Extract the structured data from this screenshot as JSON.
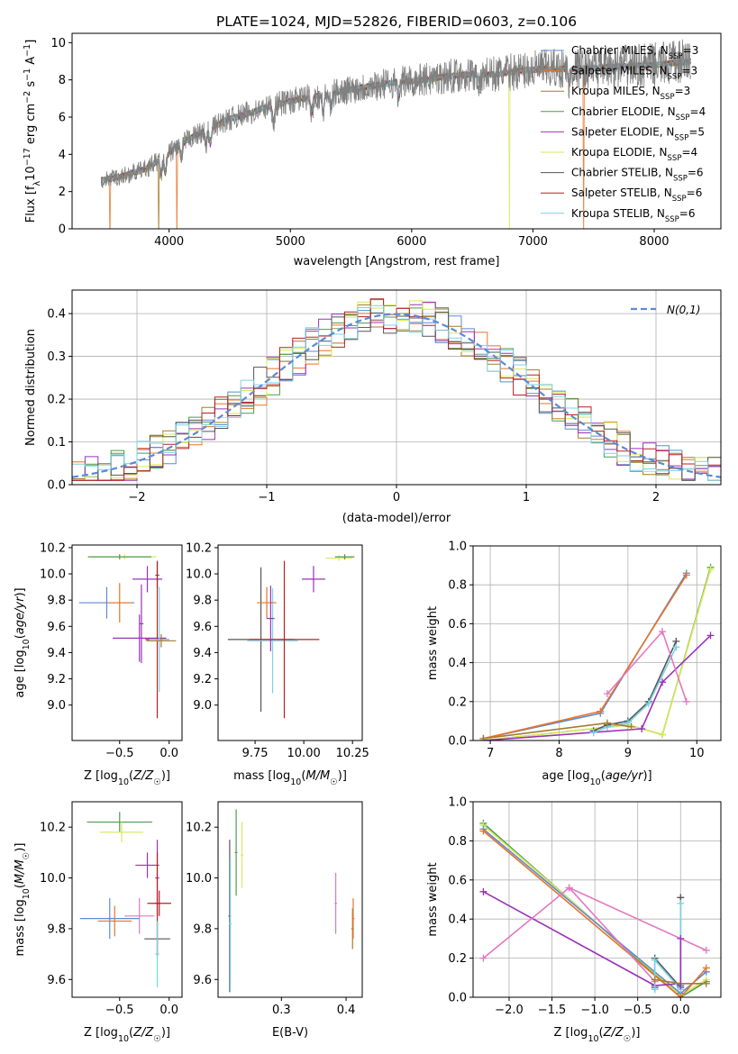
{
  "figure": {
    "title": "PLATE=1024, MJD=52826, FIBERID=0603, z=0.106"
  },
  "series_names": [
    "Chabrier MILES, N_SSP=3",
    "Salpeter MILES, N_SSP=3",
    "Kroupa MILES, N_SSP=3",
    "Chabrier ELODIE, N_SSP=4",
    "Salpeter ELODIE, N_SSP=5",
    "Kroupa ELODIE, N_SSP=4",
    "Chabrier STELIB, N_SSP=6",
    "Salpeter STELIB, N_SSP=6",
    "Kroupa STELIB, N_SSP=6"
  ],
  "series_colors": [
    "#5b8ad6",
    "#e8742a",
    "#a67c2a",
    "#4f9a4f",
    "#9a32b8",
    "#d9e85a",
    "#555555",
    "#b82020",
    "#79d2e6"
  ],
  "chart_data": [
    {
      "id": "spectrum",
      "type": "line",
      "title": "PLATE=1024, MJD=52826, FIBERID=0603, z=0.106",
      "xlabel": "wavelength [Angstrom, rest frame]",
      "ylabel": "Flux [f_λ 10^-17 erg cm^-2 s^-1 A^-1]",
      "xlim": [
        3200,
        8550
      ],
      "ylim": [
        0,
        10.5
      ],
      "xticks": [
        4000,
        5000,
        6000,
        7000,
        8000
      ],
      "yticks": [
        0,
        2,
        4,
        6,
        8,
        10
      ],
      "grid": false,
      "legend": "upper right",
      "legend_entries": [
        {
          "prefix": "Chabrier MILES, N",
          "sub": "SSP",
          "suffix": "=3"
        },
        {
          "prefix": "Salpeter MILES, N",
          "sub": "SSP",
          "suffix": "=3"
        },
        {
          "prefix": "Kroupa MILES, N",
          "sub": "SSP",
          "suffix": "=3"
        },
        {
          "prefix": "Chabrier ELODIE, N",
          "sub": "SSP",
          "suffix": "=4"
        },
        {
          "prefix": "Salpeter ELODIE, N",
          "sub": "SSP",
          "suffix": "=5"
        },
        {
          "prefix": "Kroupa ELODIE, N",
          "sub": "SSP",
          "suffix": "=4"
        },
        {
          "prefix": "Chabrier STELIB, N",
          "sub": "SSP",
          "suffix": "=6"
        },
        {
          "prefix": "Salpeter STELIB, N",
          "sub": "SSP",
          "suffix": "=6"
        },
        {
          "prefix": "Kroupa STELIB, N",
          "sub": "SSP",
          "suffix": "=6"
        }
      ],
      "data_color": "#808080",
      "data_range": [
        3440,
        8300
      ],
      "continuum_x": [
        3440,
        3600,
        3800,
        3950,
        4100,
        4300,
        4500,
        4700,
        4900,
        5100,
        5300,
        5500,
        5700,
        5900,
        6100,
        6300,
        6500,
        6700,
        6900,
        7100,
        7400,
        7700,
        8000,
        8300
      ],
      "continuum_y": [
        2.6,
        2.8,
        3.2,
        3.8,
        4.6,
        5.3,
        5.9,
        6.3,
        6.7,
        7.0,
        7.2,
        7.5,
        7.7,
        7.9,
        8.0,
        8.2,
        8.3,
        8.3,
        8.5,
        8.6,
        8.6,
        8.7,
        8.8,
        9.0
      ],
      "absorption_lines": [
        3934,
        3969,
        4102,
        4304,
        4341,
        4861,
        5175,
        5270,
        5335,
        5894,
        6563,
        7300
      ],
      "model_dips": [
        {
          "x": 3510,
          "series": 1
        },
        {
          "x": 3915,
          "series": 2
        },
        {
          "x": 4065,
          "series": 1
        },
        {
          "x": 6805,
          "series": 5
        },
        {
          "x": 7420,
          "series": 1
        }
      ]
    },
    {
      "id": "residual-histogram",
      "type": "line",
      "xlabel": "(data-model)/error",
      "ylabel": "Normed distribution",
      "xlim": [
        -2.5,
        2.5
      ],
      "ylim": [
        0,
        0.455
      ],
      "xticks": [
        -2,
        -1,
        0,
        1,
        2
      ],
      "yticks": [
        0.0,
        0.1,
        0.2,
        0.3,
        0.4
      ],
      "grid": true,
      "legend": "upper right",
      "reference_label": "N(0,1)",
      "reference_color": "#5b8ad6",
      "bin_width": 0.1,
      "bins_start": -2.5
    },
    {
      "id": "age-vs-metallicity",
      "type": "scatter",
      "xlabel": "Z [log10(Z/Z☉)]",
      "ylabel": "age [log10(age/yr)]",
      "xlim": [
        -0.98,
        0.13
      ],
      "ylim": [
        8.73,
        10.22
      ],
      "xticks": [
        -0.5,
        0.0
      ],
      "xticklabels": [
        "−0.5",
        "0.0"
      ],
      "yticks": [
        9.0,
        9.2,
        9.4,
        9.6,
        9.8,
        10.0,
        10.2
      ],
      "grid": false,
      "errorbars": [
        {
          "x": -0.45,
          "y": 10.13,
          "xerr": 0.32,
          "yerr": 0.02,
          "series": 5
        },
        {
          "x": -0.5,
          "y": 10.13,
          "xerr": 0.32,
          "yerr": 0.02,
          "series": 3
        },
        {
          "x": -0.22,
          "y": 9.96,
          "xerr": 0.15,
          "yerr": 0.1,
          "series": 4
        },
        {
          "x": -0.12,
          "y": 9.99,
          "xerr": 0.02,
          "yerr": 0.1,
          "series": 6
        },
        {
          "x": -0.63,
          "y": 9.78,
          "xerr": 0.28,
          "yerr": 0.12,
          "series": 0
        },
        {
          "x": -0.5,
          "y": 9.78,
          "xerr": 0.12,
          "yerr": 0.15,
          "series": 1
        },
        {
          "x": -0.3,
          "y": 9.51,
          "xerr": 0.27,
          "yerr": 0.18,
          "series": 4
        },
        {
          "x": -0.12,
          "y": 9.5,
          "xerr": 0.12,
          "yerr": 0.6,
          "series": 7
        },
        {
          "x": -0.1,
          "y": 9.5,
          "xerr": 0.1,
          "yerr": 0.4,
          "series": 8
        },
        {
          "x": -0.08,
          "y": 9.49,
          "xerr": 0.15,
          "yerr": 0.05,
          "series": 2
        },
        {
          "x": -0.28,
          "y": 9.62,
          "xerr": 0.02,
          "yerr": 0.3,
          "series": 4
        }
      ]
    },
    {
      "id": "age-vs-mass",
      "type": "scatter",
      "xlabel": "mass [log10(M/M☉)]",
      "ylabel": "",
      "xlim": [
        9.56,
        10.3
      ],
      "ylim": [
        8.73,
        10.22
      ],
      "xticks": [
        9.75,
        10.0,
        10.25
      ],
      "xticklabels": [
        "9.75",
        "10.00",
        "10.25"
      ],
      "yticks": [
        9.0,
        9.2,
        9.4,
        9.6,
        9.8,
        10.0,
        10.2
      ],
      "grid": false,
      "errorbars": [
        {
          "x": 10.18,
          "y": 10.12,
          "xerr": 0.07,
          "yerr": 0.02,
          "series": 5
        },
        {
          "x": 10.21,
          "y": 10.13,
          "xerr": 0.05,
          "yerr": 0.02,
          "series": 3
        },
        {
          "x": 10.05,
          "y": 9.96,
          "xerr": 0.06,
          "yerr": 0.1,
          "series": 4
        },
        {
          "x": 9.78,
          "y": 9.5,
          "xerr": 0.17,
          "yerr": 0.55,
          "series": 6
        },
        {
          "x": 9.84,
          "y": 9.49,
          "xerr": 0.13,
          "yerr": 0.4,
          "series": 8
        },
        {
          "x": 9.9,
          "y": 9.5,
          "xerr": 0.18,
          "yerr": 0.6,
          "series": 7
        },
        {
          "x": 9.81,
          "y": 9.78,
          "xerr": 0.05,
          "yerr": 0.12,
          "series": 1
        },
        {
          "x": 9.83,
          "y": 9.66,
          "xerr": 0.02,
          "yerr": 0.25,
          "series": 4
        }
      ]
    },
    {
      "id": "weight-vs-age",
      "type": "line",
      "xlabel": "age [log10(age/yr)]",
      "ylabel": "mass weight",
      "xlim": [
        6.75,
        10.35
      ],
      "ylim": [
        0,
        1
      ],
      "xticks": [
        7,
        8,
        9,
        10
      ],
      "yticks": [
        0.0,
        0.2,
        0.4,
        0.6,
        0.8,
        1.0
      ],
      "grid": true,
      "series": [
        {
          "color_index": 0,
          "x": [
            6.9,
            8.6,
            9.85
          ],
          "y": [
            0.01,
            0.14,
            0.86
          ]
        },
        {
          "color_index": 1,
          "x": [
            6.9,
            8.6,
            9.85
          ],
          "y": [
            0.01,
            0.15,
            0.85
          ]
        },
        {
          "color_index": 3,
          "x": [
            6.9,
            9.0,
            9.5,
            10.2
          ],
          "y": [
            0.0,
            0.08,
            0.03,
            0.89
          ]
        },
        {
          "color_index": 5,
          "x": [
            6.9,
            9.0,
            9.5,
            10.2
          ],
          "y": [
            0.0,
            0.08,
            0.03,
            0.88
          ]
        },
        {
          "color_index": 4,
          "x": [
            6.9,
            9.2,
            9.5,
            10.2
          ],
          "y": [
            0.0,
            0.06,
            0.3,
            0.54
          ]
        },
        {
          "color_index": 6,
          "x": [
            8.5,
            8.7,
            9.0,
            9.3,
            9.7
          ],
          "y": [
            0.05,
            0.08,
            0.1,
            0.2,
            0.51
          ]
        },
        {
          "color_index": 8,
          "x": [
            8.5,
            8.7,
            9.0,
            9.3,
            9.7
          ],
          "y": [
            0.04,
            0.07,
            0.09,
            0.19,
            0.48
          ]
        },
        {
          "color_index": 2,
          "x": [
            6.9,
            8.7,
            9.05
          ],
          "y": [
            0.01,
            0.09,
            0.07
          ]
        },
        {
          "color_index": 9,
          "x": [
            8.7,
            9.5,
            9.85
          ],
          "y": [
            0.24,
            0.56,
            0.2
          ]
        }
      ]
    },
    {
      "id": "mass-vs-metallicity",
      "type": "scatter",
      "xlabel": "Z [log10(Z/Z☉)]",
      "ylabel": "mass [log10(M/M☉)]",
      "xlim": [
        -0.98,
        0.13
      ],
      "ylim": [
        9.53,
        10.3
      ],
      "xticks": [
        -0.5,
        0.0
      ],
      "xticklabels": [
        "−0.5",
        "0.0"
      ],
      "yticks": [
        9.6,
        9.8,
        10.0,
        10.2
      ],
      "grid": false,
      "errorbars": [
        {
          "x": -0.5,
          "y": 10.22,
          "xerr": 0.33,
          "yerr": 0.04,
          "series": 3
        },
        {
          "x": -0.48,
          "y": 10.18,
          "xerr": 0.22,
          "yerr": 0.04,
          "series": 5
        },
        {
          "x": -0.22,
          "y": 10.05,
          "xerr": 0.12,
          "yerr": 0.05,
          "series": 4
        },
        {
          "x": -0.12,
          "y": 10.0,
          "xerr": 0.02,
          "yerr": 0.15,
          "series": 4
        },
        {
          "x": -0.12,
          "y": 9.9,
          "xerr": 0.02,
          "yerr": 0.2,
          "series": 7
        },
        {
          "x": -0.1,
          "y": 9.9,
          "xerr": 0.12,
          "yerr": 0.05,
          "series": 7
        },
        {
          "x": -0.6,
          "y": 9.84,
          "xerr": 0.3,
          "yerr": 0.08,
          "series": 0
        },
        {
          "x": -0.55,
          "y": 9.83,
          "xerr": 0.17,
          "yerr": 0.06,
          "series": 1
        },
        {
          "x": -0.3,
          "y": 9.85,
          "xerr": 0.15,
          "yerr": 0.07,
          "series": 9
        },
        {
          "x": -0.12,
          "y": 9.76,
          "xerr": 0.13,
          "yerr": 0.07,
          "series": 6
        },
        {
          "x": -0.12,
          "y": 9.7,
          "xerr": 0.02,
          "yerr": 0.13,
          "series": 8
        }
      ]
    },
    {
      "id": "mass-vs-extinction",
      "type": "scatter",
      "xlabel": "E(B-V)",
      "ylabel": "",
      "xlim": [
        0.202,
        0.425
      ],
      "ylim": [
        9.53,
        10.3
      ],
      "xticks": [
        0.3,
        0.4
      ],
      "xticklabels": [
        "0.3",
        "0.4"
      ],
      "yticks": [
        9.6,
        9.8,
        10.0,
        10.2
      ],
      "grid": false,
      "errorbars": [
        {
          "x": 0.23,
          "y": 10.1,
          "xerr": 0.002,
          "yerr": 0.17,
          "series": 3
        },
        {
          "x": 0.239,
          "y": 10.09,
          "xerr": 0.002,
          "yerr": 0.13,
          "series": 5
        },
        {
          "x": 0.22,
          "y": 9.85,
          "xerr": 0.002,
          "yerr": 0.3,
          "series": 6
        },
        {
          "x": 0.221,
          "y": 9.82,
          "xerr": 0.002,
          "yerr": 0.26,
          "series": 8
        },
        {
          "x": 0.384,
          "y": 9.9,
          "xerr": 0.002,
          "yerr": 0.12,
          "series": 9
        },
        {
          "x": 0.41,
          "y": 9.8,
          "xerr": 0.002,
          "yerr": 0.08,
          "series": 2
        },
        {
          "x": 0.411,
          "y": 9.84,
          "xerr": 0.002,
          "yerr": 0.08,
          "series": 1
        }
      ]
    },
    {
      "id": "weight-vs-metallicity",
      "type": "line",
      "xlabel": "Z [log10(Z/Z☉)]",
      "ylabel": "mass weight",
      "xlim": [
        -2.42,
        0.47
      ],
      "ylim": [
        0,
        1
      ],
      "xticks": [
        -2.0,
        -1.5,
        -1.0,
        -0.5,
        0.0
      ],
      "xticklabels": [
        "−2.0",
        "−1.5",
        "−1.0",
        "−0.5",
        "0.0"
      ],
      "yticks": [
        0.0,
        0.2,
        0.4,
        0.6,
        0.8,
        1.0
      ],
      "grid": true,
      "series": [
        {
          "color_index": 3,
          "x": [
            -2.3,
            0.0,
            0.3
          ],
          "y": [
            0.89,
            0.0,
            0.08
          ]
        },
        {
          "color_index": 5,
          "x": [
            -2.3,
            0.0,
            0.3
          ],
          "y": [
            0.88,
            0.01,
            0.09
          ]
        },
        {
          "color_index": 0,
          "x": [
            -2.3,
            0.0,
            0.3
          ],
          "y": [
            0.86,
            0.02,
            0.13
          ]
        },
        {
          "color_index": 1,
          "x": [
            -2.3,
            0.0,
            0.3
          ],
          "y": [
            0.85,
            0.0,
            0.15
          ]
        },
        {
          "color_index": 4,
          "x": [
            -2.3,
            -0.3,
            0.0
          ],
          "y": [
            0.54,
            0.06,
            0.07
          ]
        },
        {
          "color_index": 9,
          "x": [
            -2.3,
            -1.3,
            0.3
          ],
          "y": [
            0.2,
            0.56,
            0.24
          ]
        },
        {
          "color_index": 9,
          "x": [
            -1.3,
            -0.3
          ],
          "y": [
            0.56,
            0.08
          ]
        },
        {
          "color_index": 6,
          "x": [
            -0.3,
            -0.3,
            0.0,
            0.0
          ],
          "y": [
            0.05,
            0.2,
            0.05,
            0.51
          ]
        },
        {
          "color_index": 8,
          "x": [
            -0.3,
            -0.3,
            0.0,
            0.0
          ],
          "y": [
            0.04,
            0.19,
            0.04,
            0.48
          ]
        },
        {
          "color_index": 2,
          "x": [
            -0.3,
            0.0,
            0.3
          ],
          "y": [
            0.09,
            0.07,
            0.07
          ]
        },
        {
          "color_index": 4,
          "x": [
            0.0,
            0.0
          ],
          "y": [
            0.06,
            0.3
          ]
        }
      ]
    }
  ]
}
